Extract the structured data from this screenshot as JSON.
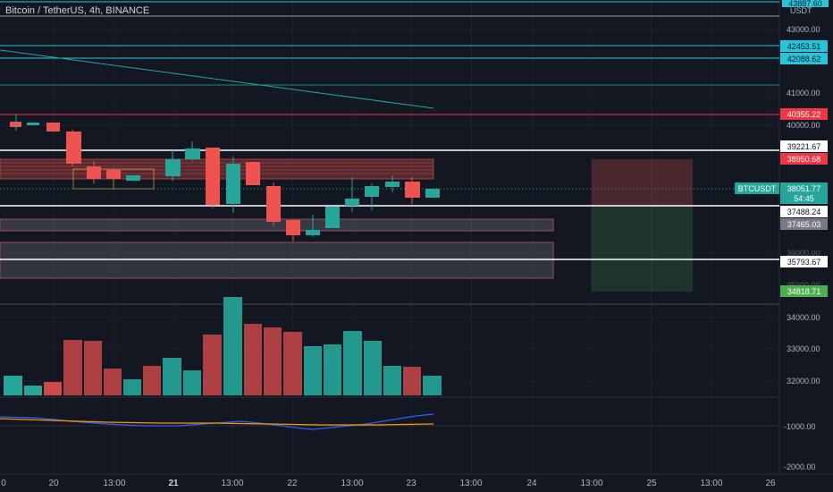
{
  "header": {
    "symbol_title": "Bitcoin / TetherUS, 4h, BINANCE"
  },
  "price_scale": {
    "unit": "USDT",
    "top_tag": "43887.60",
    "ticks": [
      "43000.00",
      "41000.00",
      "40000.00",
      "34000.00",
      "33000.00",
      "32000.00",
      "-1000.00",
      "-2000.00"
    ],
    "partial_ticks": [
      "36000.00",
      "35000.00"
    ],
    "level_tags": [
      {
        "value": "42453.51",
        "color": "#26c6da"
      },
      {
        "value": "42088.62",
        "color": "#26c6da"
      },
      {
        "value": "40355.22",
        "color": "#f23645"
      },
      {
        "value": "39221.67",
        "color": "#ffffff"
      },
      {
        "value": "38950.68",
        "color": "#f23645"
      },
      {
        "value": "37488.24",
        "color": "#ffffff"
      },
      {
        "value": "37465.03",
        "color": "#787b86"
      },
      {
        "value": "35793.67",
        "color": "#ffffff"
      },
      {
        "value": "34818.71",
        "color": "#4caf50"
      }
    ],
    "current": {
      "symbol": "BTCUSDT",
      "price": "38051.77",
      "countdown": "54:45"
    }
  },
  "time_axis": {
    "labels": [
      "0",
      "20",
      "13:00",
      "21",
      "13:00",
      "22",
      "13:00",
      "23",
      "13:00",
      "24",
      "13:00",
      "25",
      "13:00",
      "26"
    ]
  },
  "colors": {
    "up": "#26a69a",
    "down": "#ef5350",
    "background": "#131722"
  }
}
